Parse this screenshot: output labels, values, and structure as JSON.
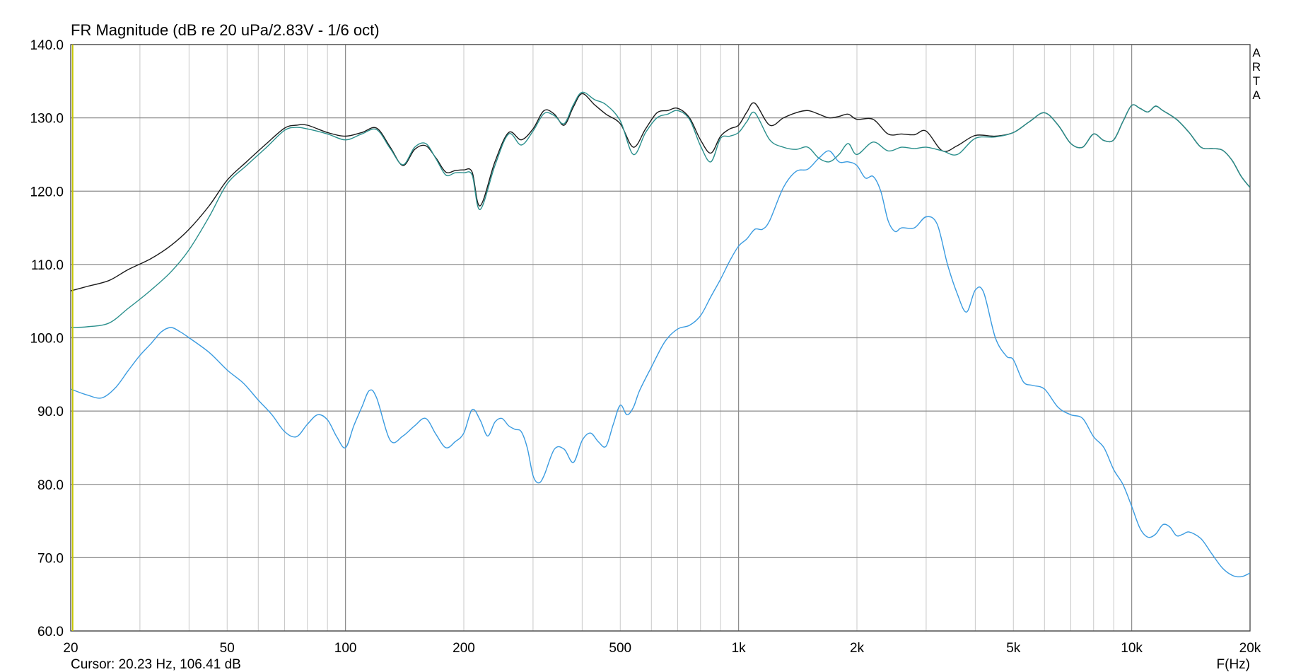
{
  "chart_data": {
    "type": "line",
    "title": "FR Magnitude (dB re 20 uPa/2.83V - 1/6 oct)",
    "xlabel": "F(Hz)",
    "ylabel": "",
    "x_scale": "log",
    "xlim": [
      20,
      20000
    ],
    "ylim": [
      60,
      140
    ],
    "grid": true,
    "x_major_ticks": [
      20,
      50,
      100,
      200,
      500,
      1000,
      2000,
      5000,
      10000,
      20000
    ],
    "x_tick_labels": [
      "20",
      "50",
      "100",
      "200",
      "500",
      "1k",
      "2k",
      "5k",
      "10k",
      "20k"
    ],
    "x_major_gridlines": [
      100,
      1000,
      10000
    ],
    "x_minor_gridlines": [
      20,
      30,
      40,
      50,
      60,
      70,
      80,
      90,
      200,
      300,
      400,
      500,
      600,
      700,
      800,
      900,
      2000,
      3000,
      4000,
      5000,
      6000,
      7000,
      8000,
      9000,
      20000
    ],
    "y_ticks": [
      60,
      70,
      80,
      90,
      100,
      110,
      120,
      130,
      140
    ],
    "y_tick_labels": [
      "60.0",
      "70.0",
      "80.0",
      "90.0",
      "100.0",
      "110.0",
      "120.0",
      "130.0",
      "140.0"
    ],
    "cursor_frequency": 20.23,
    "cursor_text": "Cursor: 20.23 Hz, 106.41 dB",
    "watermark": [
      "A",
      "R",
      "T",
      "A"
    ],
    "colors": {
      "black_trace": "#1a1a1a",
      "teal_trace": "#2a8f8c",
      "blue_trace": "#3a9be0",
      "cursor": "#c8c800",
      "grid_major": "#8c8c8c",
      "grid_minor": "#c8c8c8"
    },
    "series": [
      {
        "color": "#1a1a1a",
        "x": [
          20,
          22,
          25,
          28,
          32,
          36,
          40,
          45,
          50,
          56,
          63,
          70,
          75,
          80,
          90,
          100,
          110,
          120,
          130,
          140,
          150,
          160,
          170,
          180,
          190,
          200,
          210,
          220,
          240,
          260,
          280,
          300,
          320,
          340,
          360,
          380,
          400,
          430,
          460,
          500,
          540,
          580,
          620,
          660,
          700,
          750,
          800,
          850,
          900,
          950,
          1000,
          1050,
          1100,
          1200,
          1300,
          1400,
          1500,
          1600,
          1700,
          1800,
          1900,
          2000,
          2200,
          2400,
          2600,
          2800,
          3000,
          3300,
          3600,
          4000,
          4500,
          5000,
          5500,
          6000,
          6500,
          7000,
          7500,
          8000,
          8500,
          9000,
          9500,
          10000,
          10500,
          11000,
          11500,
          12000,
          13000,
          14000,
          15000,
          16000,
          17000,
          18000,
          19000,
          20000
        ],
        "values": [
          106.4,
          107.0,
          107.8,
          109.3,
          110.8,
          112.6,
          114.8,
          118.0,
          121.5,
          124.0,
          126.5,
          128.6,
          129.0,
          129.0,
          128.0,
          127.5,
          128.0,
          128.6,
          126.0,
          123.5,
          125.7,
          126.2,
          124.5,
          122.6,
          122.8,
          122.9,
          122.6,
          118.0,
          124.0,
          128.0,
          127.0,
          128.5,
          131.0,
          130.5,
          129.0,
          131.5,
          133.3,
          131.8,
          130.5,
          129.2,
          126.0,
          128.5,
          130.7,
          131.0,
          131.3,
          130.0,
          127.0,
          125.2,
          127.5,
          128.5,
          129.0,
          130.8,
          132.0,
          129.0,
          130.0,
          130.7,
          131.0,
          130.5,
          130.0,
          130.2,
          130.5,
          129.8,
          129.8,
          127.8,
          127.8,
          127.7,
          128.2,
          125.5,
          126.2,
          127.6,
          127.5,
          128.0,
          129.5,
          130.7,
          129.0,
          126.5,
          126.0,
          127.8,
          126.9,
          127.0,
          129.5,
          131.7,
          131.3,
          130.8,
          131.6,
          131.0,
          129.8,
          128.0,
          126.0,
          125.8,
          125.6,
          124.2,
          122.0,
          120.5
        ]
      },
      {
        "color": "#2a8f8c",
        "x": [
          20,
          22,
          25,
          28,
          32,
          36,
          40,
          45,
          50,
          56,
          63,
          70,
          75,
          80,
          90,
          100,
          110,
          120,
          130,
          140,
          150,
          160,
          170,
          180,
          190,
          200,
          210,
          220,
          240,
          260,
          280,
          300,
          320,
          340,
          360,
          380,
          400,
          430,
          460,
          500,
          540,
          580,
          620,
          660,
          700,
          750,
          800,
          850,
          900,
          950,
          1000,
          1050,
          1100,
          1200,
          1300,
          1400,
          1500,
          1600,
          1700,
          1800,
          1900,
          2000,
          2200,
          2400,
          2600,
          2800,
          3000,
          3300,
          3600,
          4000,
          4500,
          5000,
          5500,
          6000,
          6500,
          7000,
          7500,
          8000,
          8500,
          9000,
          9500,
          10000,
          10500,
          11000,
          11500,
          12000,
          13000,
          14000,
          15000,
          16000,
          17000,
          18000,
          19000,
          20000
        ],
        "values": [
          101.4,
          101.5,
          102.0,
          104.0,
          106.5,
          109.0,
          112.0,
          116.5,
          121.0,
          123.5,
          126.0,
          128.3,
          128.7,
          128.5,
          127.8,
          127.0,
          127.8,
          128.4,
          125.8,
          123.6,
          126.0,
          126.5,
          124.4,
          122.2,
          122.5,
          122.5,
          122.2,
          117.5,
          123.5,
          127.8,
          126.3,
          128.2,
          130.6,
          130.3,
          129.2,
          131.8,
          133.5,
          132.5,
          131.8,
          129.6,
          125.0,
          128.0,
          130.0,
          130.5,
          131.0,
          129.8,
          126.2,
          124.0,
          127.2,
          127.5,
          128.0,
          129.5,
          130.7,
          127.0,
          126.0,
          125.7,
          126.0,
          124.5,
          124.0,
          125.0,
          126.5,
          125.0,
          126.7,
          125.5,
          126.0,
          125.8,
          126.0,
          125.5,
          125.0,
          127.2,
          127.4,
          128.0,
          129.5,
          130.7,
          129.0,
          126.5,
          126.0,
          127.8,
          126.9,
          127.0,
          129.5,
          131.7,
          131.3,
          130.8,
          131.6,
          131.0,
          129.8,
          128.0,
          126.0,
          125.8,
          125.6,
          124.2,
          122.0,
          120.5
        ]
      },
      {
        "color": "#3a9be0",
        "x": [
          20,
          22,
          24,
          26,
          28,
          30,
          32,
          34,
          36,
          38,
          40,
          45,
          50,
          55,
          60,
          65,
          70,
          75,
          80,
          85,
          90,
          95,
          100,
          105,
          110,
          115,
          120,
          130,
          140,
          150,
          160,
          170,
          180,
          190,
          200,
          210,
          220,
          230,
          240,
          250,
          260,
          270,
          280,
          290,
          300,
          310,
          320,
          340,
          360,
          380,
          400,
          420,
          440,
          460,
          480,
          500,
          520,
          540,
          560,
          600,
          650,
          700,
          750,
          800,
          850,
          900,
          950,
          1000,
          1050,
          1100,
          1150,
          1200,
          1300,
          1400,
          1500,
          1600,
          1700,
          1800,
          1900,
          2000,
          2100,
          2200,
          2300,
          2400,
          2500,
          2600,
          2800,
          3000,
          3200,
          3400,
          3600,
          3800,
          4000,
          4200,
          4500,
          4800,
          5000,
          5300,
          5600,
          6000,
          6500,
          7000,
          7500,
          8000,
          8500,
          9000,
          9500,
          10000,
          10500,
          11000,
          11500,
          12000,
          12500,
          13000,
          13500,
          14000,
          15000,
          16000,
          17000,
          18000,
          19000,
          20000
        ],
        "values": [
          93.0,
          92.2,
          91.8,
          93.2,
          95.5,
          97.6,
          99.2,
          100.8,
          101.4,
          100.8,
          100.0,
          98.0,
          95.6,
          93.8,
          91.5,
          89.5,
          87.2,
          86.5,
          88.2,
          89.5,
          88.8,
          86.5,
          85.0,
          88.0,
          90.5,
          92.8,
          91.8,
          86.0,
          86.6,
          88.0,
          89.0,
          86.8,
          85.0,
          85.8,
          87.0,
          90.2,
          88.8,
          86.6,
          88.5,
          89.0,
          88.0,
          87.5,
          87.2,
          85.0,
          81.2,
          80.2,
          81.2,
          84.8,
          84.8,
          83.0,
          86.0,
          87.0,
          85.8,
          85.2,
          88.2,
          90.8,
          89.5,
          90.5,
          92.8,
          96.0,
          99.5,
          101.2,
          101.7,
          103.0,
          105.6,
          108.0,
          110.5,
          112.5,
          113.5,
          114.8,
          114.8,
          116.0,
          120.5,
          122.7,
          123.0,
          124.5,
          125.5,
          124.0,
          124.0,
          123.5,
          121.8,
          122.0,
          120.0,
          116.0,
          114.5,
          115.0,
          115.0,
          116.5,
          115.5,
          110.0,
          106.0,
          103.5,
          106.5,
          106.2,
          100.0,
          97.5,
          97.0,
          94.0,
          93.5,
          93.0,
          90.5,
          89.5,
          89.0,
          86.5,
          85.0,
          82.0,
          80.0,
          77.0,
          74.0,
          72.8,
          73.2,
          74.5,
          74.2,
          73.0,
          73.2,
          73.5,
          72.6,
          70.5,
          68.6,
          67.6,
          67.4,
          67.9
        ]
      }
    ]
  }
}
